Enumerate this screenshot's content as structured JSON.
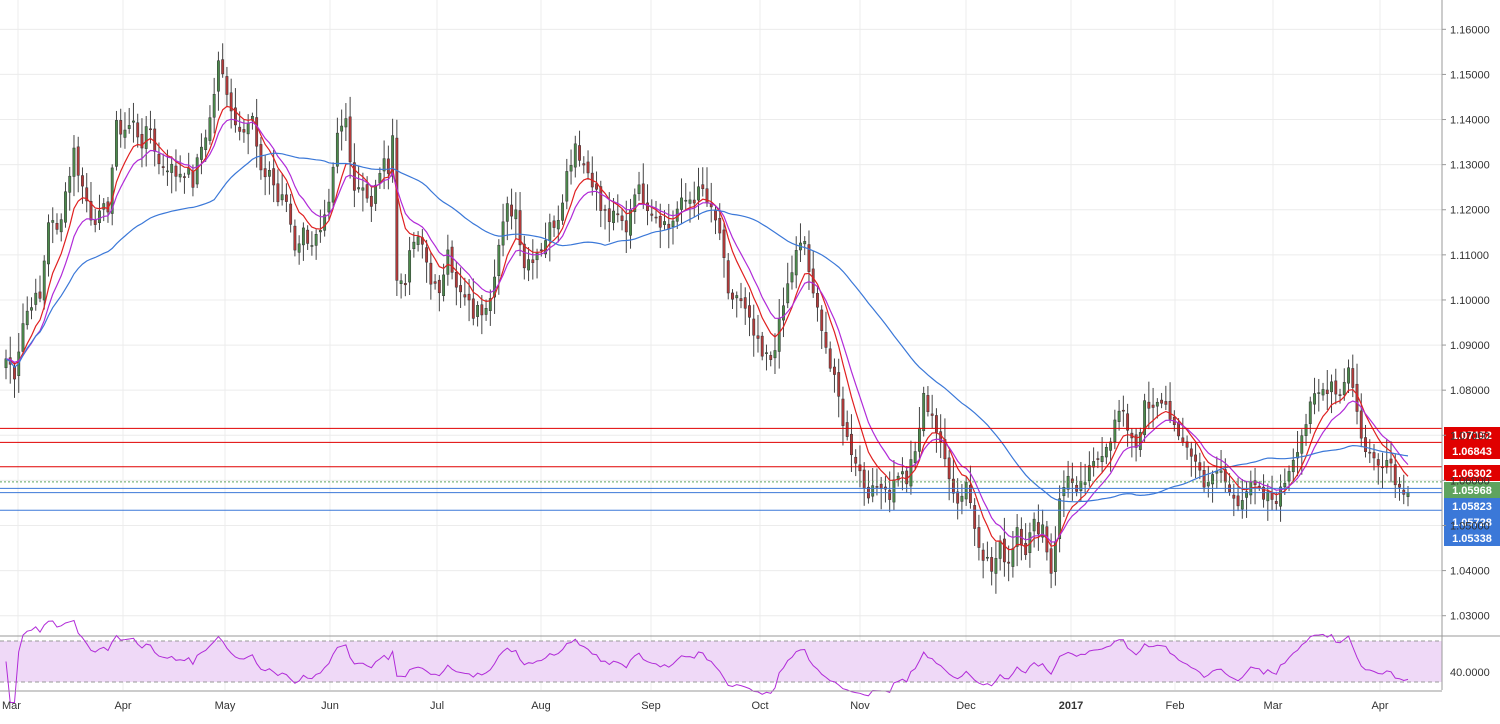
{
  "chart_data": {
    "type": "candlestick",
    "title": "",
    "x_labels": [
      "Mar",
      "Apr",
      "May",
      "Jun",
      "Jul",
      "Aug",
      "Sep",
      "Oct",
      "Nov",
      "Dec",
      "2017",
      "Feb",
      "Mar",
      "Apr"
    ],
    "y_ticks": [
      "1.16000",
      "1.15000",
      "1.14000",
      "1.13000",
      "1.12000",
      "1.11000",
      "1.10000",
      "1.09000",
      "1.08000",
      "1.07000",
      "1.06000",
      "1.05000",
      "1.04000",
      "1.03000"
    ],
    "ylim": [
      1.0255,
      1.1665
    ],
    "price_levels": [
      {
        "label": "1.07152",
        "value": 1.07152,
        "line_color": "#e00000",
        "badge_color": "#e00000"
      },
      {
        "label": "1.06843",
        "value": 1.06843,
        "line_color": "#e00000",
        "badge_color": "#e00000"
      },
      {
        "label": "1.06302",
        "value": 1.06302,
        "line_color": "#e00000",
        "badge_color": "#e00000"
      },
      {
        "label": "1.05968",
        "value": 1.05968,
        "line_color": "#5fa35f",
        "badge_color": "#5fa35f",
        "dashed": true
      },
      {
        "label": "1.05823",
        "value": 1.05823,
        "line_color": "#3b78d8",
        "badge_color": "#3b78d8"
      },
      {
        "label": "1.05728",
        "value": 1.05728,
        "line_color": "#3b78d8",
        "badge_color": "#3b78d8"
      },
      {
        "label": "1.05338",
        "value": 1.05338,
        "line_color": "#3b78d8",
        "badge_color": "#3b78d8"
      }
    ],
    "close_anchors": [
      [
        0,
        1.087
      ],
      [
        2,
        1.084
      ],
      [
        4,
        1.095
      ],
      [
        6,
        1.1
      ],
      [
        8,
        1.1
      ],
      [
        10,
        1.118
      ],
      [
        12,
        1.115
      ],
      [
        14,
        1.124
      ],
      [
        16,
        1.133
      ],
      [
        18,
        1.125
      ],
      [
        20,
        1.119
      ],
      [
        22,
        1.118
      ],
      [
        24,
        1.121
      ],
      [
        26,
        1.138
      ],
      [
        28,
        1.138
      ],
      [
        30,
        1.139
      ],
      [
        32,
        1.135
      ],
      [
        34,
        1.138
      ],
      [
        36,
        1.13
      ],
      [
        38,
        1.13
      ],
      [
        40,
        1.128
      ],
      [
        42,
        1.129
      ],
      [
        44,
        1.126
      ],
      [
        46,
        1.134
      ],
      [
        48,
        1.14
      ],
      [
        50,
        1.152
      ],
      [
        52,
        1.147
      ],
      [
        54,
        1.139
      ],
      [
        56,
        1.139
      ],
      [
        58,
        1.14
      ],
      [
        60,
        1.127
      ],
      [
        62,
        1.129
      ],
      [
        64,
        1.122
      ],
      [
        66,
        1.122
      ],
      [
        68,
        1.112
      ],
      [
        70,
        1.115
      ],
      [
        72,
        1.113
      ],
      [
        74,
        1.114
      ],
      [
        76,
        1.12
      ],
      [
        78,
        1.136
      ],
      [
        80,
        1.14
      ],
      [
        82,
        1.125
      ],
      [
        84,
        1.126
      ],
      [
        86,
        1.12
      ],
      [
        88,
        1.129
      ],
      [
        90,
        1.13
      ],
      [
        91,
        1.137
      ],
      [
        92,
        1.104
      ],
      [
        94,
        1.105
      ],
      [
        96,
        1.113
      ],
      [
        98,
        1.112
      ],
      [
        100,
        1.105
      ],
      [
        102,
        1.1
      ],
      [
        104,
        1.113
      ],
      [
        106,
        1.102
      ],
      [
        108,
        1.1
      ],
      [
        110,
        1.097
      ],
      [
        112,
        1.098
      ],
      [
        114,
        1.102
      ],
      [
        116,
        1.112
      ],
      [
        118,
        1.12
      ],
      [
        120,
        1.12
      ],
      [
        122,
        1.108
      ],
      [
        124,
        1.11
      ],
      [
        126,
        1.112
      ],
      [
        128,
        1.116
      ],
      [
        130,
        1.119
      ],
      [
        132,
        1.128
      ],
      [
        134,
        1.135
      ],
      [
        136,
        1.13
      ],
      [
        138,
        1.127
      ],
      [
        140,
        1.12
      ],
      [
        142,
        1.118
      ],
      [
        144,
        1.118
      ],
      [
        146,
        1.116
      ],
      [
        148,
        1.125
      ],
      [
        150,
        1.123
      ],
      [
        152,
        1.12
      ],
      [
        154,
        1.118
      ],
      [
        156,
        1.116
      ],
      [
        158,
        1.12
      ],
      [
        160,
        1.122
      ],
      [
        162,
        1.123
      ],
      [
        164,
        1.124
      ],
      [
        166,
        1.119
      ],
      [
        168,
        1.115
      ],
      [
        170,
        1.1
      ],
      [
        172,
        1.101
      ],
      [
        174,
        1.097
      ],
      [
        176,
        1.092
      ],
      [
        178,
        1.087
      ],
      [
        180,
        1.087
      ],
      [
        182,
        1.094
      ],
      [
        184,
        1.103
      ],
      [
        186,
        1.11
      ],
      [
        188,
        1.113
      ],
      [
        190,
        1.1
      ],
      [
        192,
        1.095
      ],
      [
        194,
        1.085
      ],
      [
        196,
        1.078
      ],
      [
        198,
        1.069
      ],
      [
        200,
        1.065
      ],
      [
        202,
        1.059
      ],
      [
        204,
        1.057
      ],
      [
        206,
        1.06
      ],
      [
        208,
        1.057
      ],
      [
        210,
        1.062
      ],
      [
        212,
        1.06
      ],
      [
        214,
        1.066
      ],
      [
        216,
        1.078
      ],
      [
        218,
        1.075
      ],
      [
        220,
        1.067
      ],
      [
        222,
        1.062
      ],
      [
        224,
        1.055
      ],
      [
        226,
        1.06
      ],
      [
        228,
        1.05
      ],
      [
        230,
        1.044
      ],
      [
        232,
        1.04
      ],
      [
        234,
        1.045
      ],
      [
        236,
        1.042
      ],
      [
        238,
        1.05
      ],
      [
        240,
        1.045
      ],
      [
        242,
        1.05
      ],
      [
        244,
        1.05
      ],
      [
        246,
        1.04
      ],
      [
        248,
        1.055
      ],
      [
        250,
        1.062
      ],
      [
        252,
        1.056
      ],
      [
        254,
        1.06
      ],
      [
        256,
        1.063
      ],
      [
        258,
        1.067
      ],
      [
        260,
        1.07
      ],
      [
        262,
        1.075
      ],
      [
        264,
        1.072
      ],
      [
        266,
        1.068
      ],
      [
        268,
        1.076
      ],
      [
        270,
        1.075
      ],
      [
        272,
        1.078
      ],
      [
        274,
        1.075
      ],
      [
        276,
        1.068
      ],
      [
        278,
        1.068
      ],
      [
        280,
        1.064
      ],
      [
        282,
        1.06
      ],
      [
        284,
        1.06
      ],
      [
        286,
        1.062
      ],
      [
        288,
        1.057
      ],
      [
        290,
        1.056
      ],
      [
        292,
        1.058
      ],
      [
        294,
        1.058
      ],
      [
        296,
        1.056
      ],
      [
        298,
        1.056
      ],
      [
        300,
        1.057
      ],
      [
        302,
        1.063
      ],
      [
        304,
        1.068
      ],
      [
        306,
        1.073
      ],
      [
        308,
        1.078
      ],
      [
        310,
        1.08
      ],
      [
        312,
        1.082
      ],
      [
        314,
        1.079
      ],
      [
        316,
        1.086
      ],
      [
        318,
        1.075
      ],
      [
        320,
        1.066
      ],
      [
        322,
        1.065
      ],
      [
        324,
        1.065
      ],
      [
        326,
        1.064
      ],
      [
        328,
        1.058
      ],
      [
        330,
        1.059
      ]
    ],
    "series": [
      {
        "name": "",
        "type": "ema",
        "period": 8,
        "color": "#e02020"
      },
      {
        "name": "",
        "type": "ema",
        "period": 13,
        "color": "#b12bd8"
      },
      {
        "name": "",
        "type": "sma",
        "period": 50,
        "color": "#3b78d8"
      }
    ],
    "up_color": "#4c8a4c",
    "down_color": "#b33a3a",
    "rsi_panel": {
      "tick_label": "40.0000",
      "fill_color": "#efd9f7",
      "line_color": "#b12bd8"
    },
    "grid": true
  }
}
